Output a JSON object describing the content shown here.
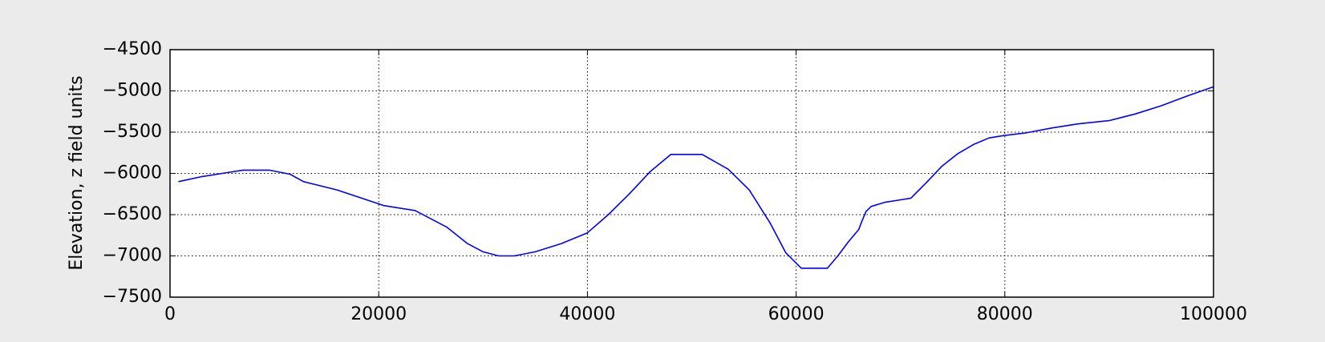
{
  "chart_data": {
    "type": "line",
    "title": "",
    "xlabel": "",
    "ylabel": "Elevation, z field units",
    "xlim": [
      0,
      100000
    ],
    "ylim": [
      -7500,
      -4500
    ],
    "xticks": [
      0,
      20000,
      40000,
      60000,
      80000,
      100000
    ],
    "yticks": [
      -4500,
      -5000,
      -5500,
      -6000,
      -6500,
      -7000,
      -7500
    ],
    "xtick_labels": [
      "0",
      "20000",
      "40000",
      "60000",
      "80000",
      "100000"
    ],
    "ytick_labels": [
      "−4500",
      "−5000",
      "−5500",
      "−6000",
      "−6500",
      "−7000",
      "−7500"
    ],
    "grid": true,
    "series": [
      {
        "color": "#0000ff",
        "x": [
          800,
          3000,
          5000,
          7000,
          9500,
          11500,
          12800,
          16000,
          20500,
          23500,
          26500,
          28500,
          30000,
          31500,
          33000,
          35000,
          37500,
          40000,
          42000,
          44000,
          46000,
          48000,
          51000,
          53500,
          55500,
          57500,
          59000,
          60500,
          62000,
          63000,
          64000,
          65000,
          66000,
          66300,
          66700,
          67200,
          68500,
          70000,
          71000,
          72500,
          74000,
          75500,
          77000,
          78500,
          80000,
          82000,
          84500,
          87000,
          90000,
          92500,
          95000,
          97500,
          100000
        ],
        "y": [
          -6100,
          -6040,
          -6000,
          -5960,
          -5960,
          -6010,
          -6100,
          -6200,
          -6390,
          -6450,
          -6650,
          -6850,
          -6950,
          -7000,
          -7000,
          -6950,
          -6850,
          -6720,
          -6500,
          -6250,
          -5980,
          -5770,
          -5770,
          -5950,
          -6200,
          -6600,
          -6960,
          -7150,
          -7150,
          -7150,
          -7000,
          -6830,
          -6680,
          -6580,
          -6460,
          -6400,
          -6350,
          -6320,
          -6300,
          -6110,
          -5910,
          -5760,
          -5650,
          -5570,
          -5540,
          -5510,
          -5450,
          -5400,
          -5360,
          -5280,
          -5180,
          -5060,
          -4950
        ]
      }
    ]
  }
}
